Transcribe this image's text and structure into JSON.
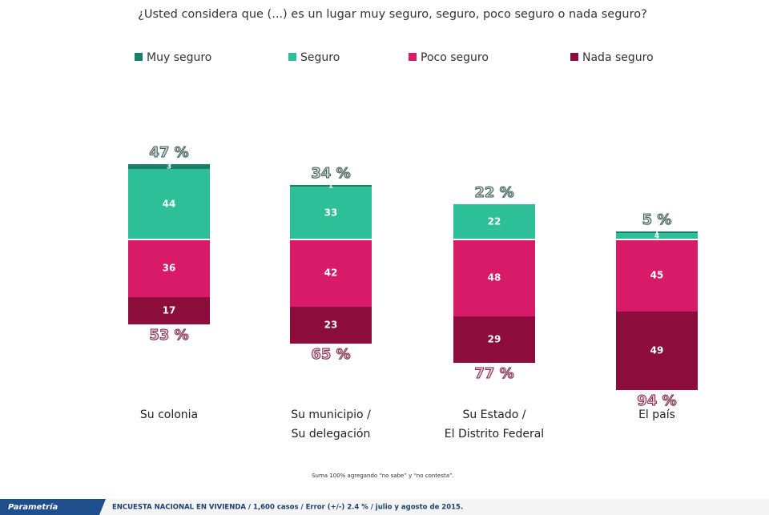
{
  "chart_data": {
    "type": "diverging_stacked_bar",
    "title": "¿Usted considera que (...) es un lugar muy seguro, seguro, poco seguro o nada seguro?",
    "categories": [
      [
        "Su colonia"
      ],
      [
        "Su municipio /",
        "Su delegación"
      ],
      [
        "Su Estado /",
        "El Distrito Federal"
      ],
      [
        "El país"
      ]
    ],
    "series": [
      {
        "name": "Muy seguro",
        "color": "#17806d",
        "values": [
          3,
          1,
          0,
          1
        ]
      },
      {
        "name": "Seguro",
        "color": "#2dbf97",
        "values": [
          44,
          33,
          22,
          4
        ]
      },
      {
        "name": "Poco seguro",
        "color": "#d81b69",
        "values": [
          36,
          42,
          48,
          45
        ]
      },
      {
        "name": "Nada seguro",
        "color": "#8c0c3c",
        "values": [
          17,
          23,
          29,
          49
        ]
      }
    ],
    "positive_totals": [
      {
        "value": 47,
        "label": "47 %"
      },
      {
        "value": 34,
        "label": "34 %"
      },
      {
        "value": 22,
        "label": "22 %"
      },
      {
        "value": 5,
        "label": "5 %"
      }
    ],
    "negative_totals": [
      {
        "value": 53,
        "label": "53 %"
      },
      {
        "value": 65,
        "label": "65 %"
      },
      {
        "value": 77,
        "label": "77 %"
      },
      {
        "value": 94,
        "label": "94 %"
      }
    ],
    "note": "Suma 100% agregando “no sabe” y “no contesta”.",
    "brand": "Parametría",
    "footer": "ENCUESTA  NACIONAL EN VIVIENDA  / 1,600 casos / Error (+/-) 2.4 % / julio y agosto de 2015."
  }
}
